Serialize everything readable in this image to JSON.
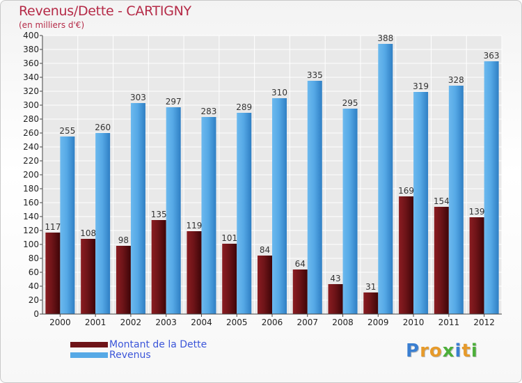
{
  "title": "Revenus/Dette - CARTIGNY",
  "subtitle": "(en milliers d'€)",
  "legend": {
    "debt_label": "Montant de la Dette",
    "revenue_label": "Revenus"
  },
  "logo": {
    "text": "Proxiti",
    "letters": [
      {
        "ch": "P",
        "color": "#3a7fd1"
      },
      {
        "ch": "r",
        "color": "#e69a2a"
      },
      {
        "ch": "o",
        "color": "#e69a2a"
      },
      {
        "ch": "x",
        "color": "#4caf3a"
      },
      {
        "ch": "i",
        "color": "#3a7fd1"
      },
      {
        "ch": "t",
        "color": "#e69a2a"
      },
      {
        "ch": "i",
        "color": "#4caf3a"
      }
    ]
  },
  "colors": {
    "debt": "#6e1418",
    "revenue": "#56a9e6",
    "title": "#b52a47",
    "legend_text": "#3b55d9"
  },
  "chart_data": {
    "type": "bar",
    "title": "Revenus/Dette - CARTIGNY",
    "ylabel": "(en milliers d'€)",
    "xlabel": "",
    "ylim": [
      0,
      400
    ],
    "ytick_step": 20,
    "grid": true,
    "legend_position": "bottom-left",
    "categories": [
      "2000",
      "2001",
      "2002",
      "2003",
      "2004",
      "2005",
      "2006",
      "2007",
      "2008",
      "2009",
      "2010",
      "2011",
      "2012"
    ],
    "series": [
      {
        "name": "Montant de la Dette",
        "values": [
          117,
          108,
          98,
          135,
          119,
          101,
          84,
          64,
          43,
          31,
          169,
          154,
          139
        ]
      },
      {
        "name": "Revenus",
        "values": [
          255,
          260,
          303,
          297,
          283,
          289,
          310,
          335,
          295,
          388,
          319,
          328,
          363
        ]
      }
    ]
  }
}
